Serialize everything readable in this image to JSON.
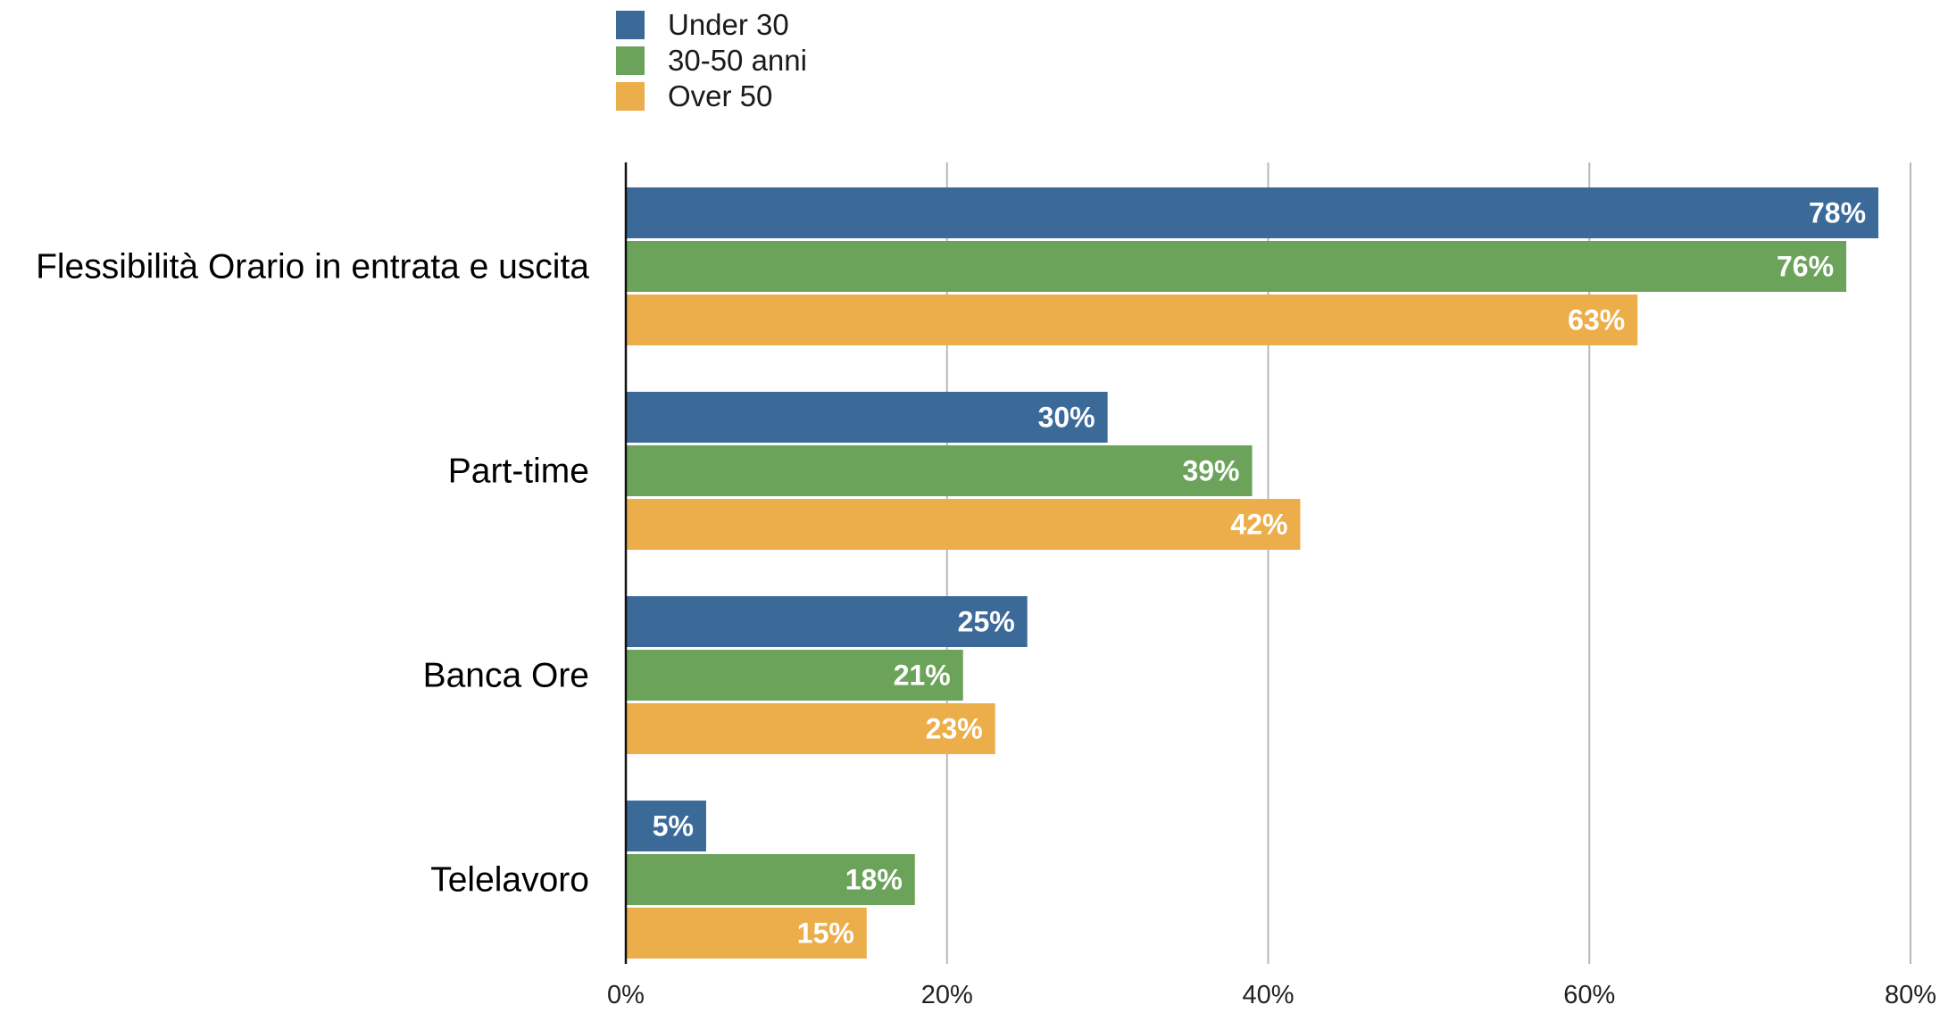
{
  "chart_data": {
    "type": "bar",
    "orientation": "horizontal",
    "categories": [
      "Flessibilità Orario in entrata e uscita",
      "Part-time",
      "Banca Ore",
      "Telelavoro"
    ],
    "series": [
      {
        "name": "Under 30",
        "color": "#3b6a99",
        "values": [
          78,
          30,
          25,
          5
        ],
        "labels": [
          "78%",
          "30%",
          "25%",
          "5%"
        ]
      },
      {
        "name": "30-50 anni",
        "color": "#6ca35a",
        "values": [
          76,
          39,
          21,
          18
        ],
        "labels": [
          "76%",
          "39%",
          "21%",
          "18%"
        ]
      },
      {
        "name": "Over 50",
        "color": "#ecae4a",
        "values": [
          63,
          42,
          23,
          15
        ],
        "labels": [
          "63%",
          "42%",
          "23%",
          "15%"
        ]
      }
    ],
    "xlim": [
      0,
      80
    ],
    "xticks": [
      0,
      20,
      40,
      60,
      80
    ],
    "xtick_labels": [
      "0%",
      "20%",
      "40%",
      "60%",
      "80%"
    ],
    "grid": true,
    "legend_position": "top",
    "title": "",
    "xlabel": "",
    "ylabel": ""
  }
}
